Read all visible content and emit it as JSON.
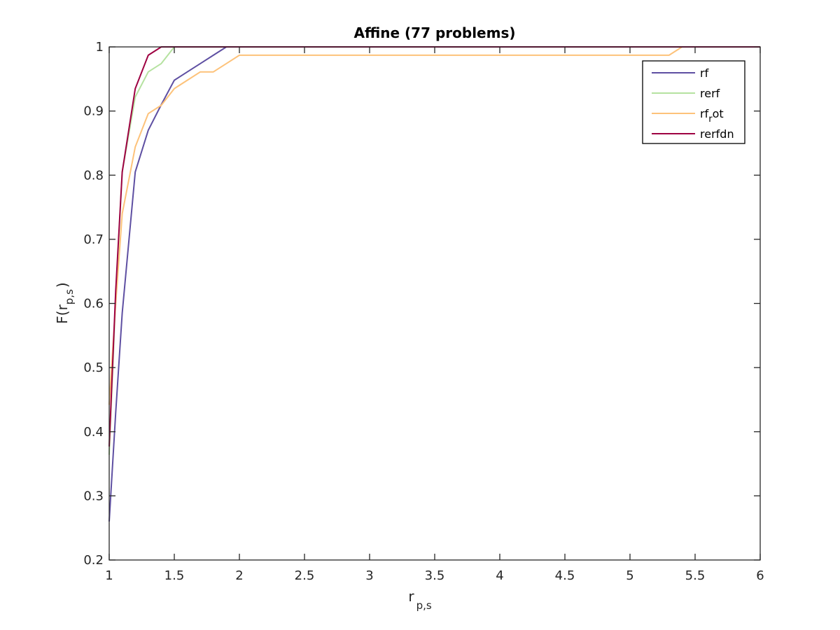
{
  "chart_data": {
    "type": "line",
    "title": "Affine (77 problems)",
    "xlabel": {
      "main": "r",
      "sub": "p,s"
    },
    "ylabel": {
      "prefix": "F(r",
      "sub": "p,s",
      "suffix": ")"
    },
    "xlim": [
      1,
      6
    ],
    "ylim": [
      0.2,
      1
    ],
    "xticks": [
      1,
      1.5,
      2,
      2.5,
      3,
      3.5,
      4,
      4.5,
      5,
      5.5,
      6
    ],
    "xtick_labels": [
      "1",
      "1.5",
      "2",
      "2.5",
      "3",
      "3.5",
      "4",
      "4.5",
      "5",
      "5.5",
      "6"
    ],
    "yticks": [
      0.2,
      0.3,
      0.4,
      0.5,
      0.6,
      0.7,
      0.8,
      0.9,
      1
    ],
    "ytick_labels": [
      "0.2",
      "0.3",
      "0.4",
      "0.5",
      "0.6",
      "0.7",
      "0.8",
      "0.9",
      "1"
    ],
    "grid": false,
    "legend_position": "top-right",
    "series": [
      {
        "name": "rf",
        "legend_parts": [
          "rf",
          "",
          ""
        ],
        "color": "#5e4fa2",
        "x": [
          1,
          1.05,
          1.1,
          1.2,
          1.3,
          1.4,
          1.5,
          1.6,
          1.7,
          1.8,
          1.9,
          6
        ],
        "y": [
          0.26,
          0.43,
          0.585,
          0.805,
          0.87,
          0.91,
          0.948,
          0.961,
          0.974,
          0.987,
          1,
          1
        ]
      },
      {
        "name": "rerf",
        "legend_parts": [
          "rerf",
          "",
          ""
        ],
        "color": "#b5e2a0",
        "x": [
          1,
          1.05,
          1.1,
          1.2,
          1.3,
          1.4,
          1.5,
          6
        ],
        "y": [
          0.364,
          0.61,
          0.805,
          0.922,
          0.961,
          0.974,
          1,
          1
        ]
      },
      {
        "name": "rf_rot",
        "legend_parts": [
          "rf",
          "r",
          "ot"
        ],
        "color": "#fdc27a",
        "x": [
          1,
          1.05,
          1.1,
          1.2,
          1.3,
          1.4,
          1.5,
          1.6,
          1.7,
          1.8,
          1.9,
          2.0,
          5.3,
          5.4,
          6
        ],
        "y": [
          0.442,
          0.6,
          0.74,
          0.844,
          0.896,
          0.909,
          0.935,
          0.948,
          0.961,
          0.961,
          0.974,
          0.987,
          0.987,
          1,
          1
        ]
      },
      {
        "name": "rerfdn",
        "legend_parts": [
          "rerfdn",
          "",
          ""
        ],
        "color": "#9e0142",
        "x": [
          1,
          1.05,
          1.1,
          1.2,
          1.3,
          1.4,
          6
        ],
        "y": [
          0.377,
          0.62,
          0.805,
          0.935,
          0.987,
          1,
          1
        ]
      }
    ]
  }
}
